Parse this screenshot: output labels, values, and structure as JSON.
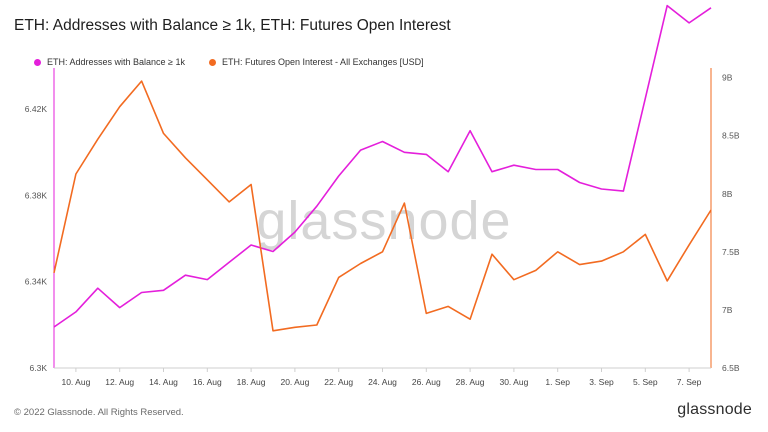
{
  "header": {
    "title": "ETH: Addresses with Balance ≥ 1k, ETH: Futures Open Interest"
  },
  "footer": {
    "copyright": "© 2022 Glassnode. All Rights Reserved.",
    "brand": "glassnode"
  },
  "watermark": "glassnode",
  "chart_data": {
    "type": "line",
    "title": "ETH: Addresses with Balance ≥ 1k, ETH: Futures Open Interest",
    "categories": [
      "9 Aug",
      "10 Aug",
      "11 Aug",
      "12 Aug",
      "13 Aug",
      "14 Aug",
      "15 Aug",
      "16 Aug",
      "17 Aug",
      "18 Aug",
      "19 Aug",
      "20 Aug",
      "21 Aug",
      "22 Aug",
      "23 Aug",
      "24 Aug",
      "25 Aug",
      "26 Aug",
      "27 Aug",
      "28 Aug",
      "29 Aug",
      "30 Aug",
      "31 Aug",
      "1 Sep",
      "2 Sep",
      "3 Sep",
      "4 Sep",
      "5 Sep",
      "6 Sep",
      "7 Sep",
      "8 Sep"
    ],
    "x_tick_labels": [
      "10. Aug",
      "12. Aug",
      "14. Aug",
      "16. Aug",
      "18. Aug",
      "20. Aug",
      "22. Aug",
      "24. Aug",
      "26. Aug",
      "28. Aug",
      "30. Aug",
      "1. Sep",
      "3. Sep",
      "5. Sep",
      "7. Sep"
    ],
    "left_axis": {
      "ylim": [
        6.3,
        6.44
      ],
      "ticks": [
        "6.3K",
        "6.34K",
        "6.38K",
        "6.42K"
      ],
      "tick_values": [
        6.3,
        6.34,
        6.38,
        6.42
      ]
    },
    "right_axis": {
      "ylim": [
        6.5,
        9.1
      ],
      "ticks": [
        "6.5B",
        "7B",
        "7.5B",
        "8B",
        "8.5B",
        "9B"
      ],
      "tick_values": [
        6.5,
        7,
        7.5,
        8,
        8.5,
        9
      ]
    },
    "grid": false,
    "legend_position": "top-left",
    "series": [
      {
        "name": "ETH: Addresses with Balance ≥ 1k",
        "color": "#e41fdb",
        "axis": "left",
        "values": [
          6.319,
          6.326,
          6.337,
          6.328,
          6.335,
          6.336,
          6.343,
          6.341,
          6.349,
          6.357,
          6.354,
          6.363,
          6.375,
          6.389,
          6.401,
          6.405,
          6.4,
          6.399,
          6.391,
          6.41,
          6.391,
          6.394,
          6.392,
          6.392,
          6.386,
          6.383,
          6.382,
          6.425,
          6.468,
          6.46,
          6.467
        ]
      },
      {
        "name": "ETH: Futures Open Interest - All Exchanges [USD]",
        "color": "#f26b21",
        "axis": "right",
        "values": [
          7.32,
          8.17,
          8.47,
          8.75,
          8.97,
          8.52,
          8.31,
          8.12,
          7.93,
          8.08,
          6.82,
          6.85,
          6.87,
          7.28,
          7.4,
          7.5,
          7.92,
          6.97,
          7.03,
          6.92,
          7.48,
          7.26,
          7.34,
          7.5,
          7.39,
          7.42,
          7.5,
          7.65,
          7.25,
          7.56,
          7.86
        ]
      }
    ]
  }
}
